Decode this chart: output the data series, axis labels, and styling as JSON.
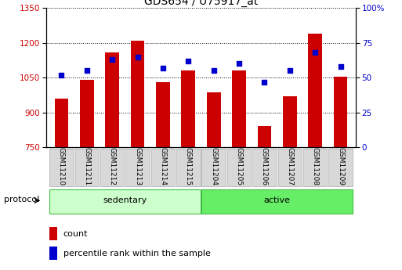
{
  "title": "GDS654 / U75917_at",
  "categories": [
    "GSM11210",
    "GSM11211",
    "GSM11212",
    "GSM11213",
    "GSM11214",
    "GSM11215",
    "GSM11204",
    "GSM11205",
    "GSM11206",
    "GSM11207",
    "GSM11208",
    "GSM11209"
  ],
  "count_values": [
    960,
    1040,
    1160,
    1210,
    1030,
    1080,
    985,
    1080,
    840,
    970,
    1240,
    1055
  ],
  "percentile_values": [
    52,
    55,
    63,
    65,
    57,
    62,
    55,
    60,
    47,
    55,
    68,
    58
  ],
  "bar_bottom": 750,
  "ylim_left": [
    750,
    1350
  ],
  "ylim_right": [
    0,
    100
  ],
  "yticks_left": [
    750,
    900,
    1050,
    1200,
    1350
  ],
  "yticks_right": [
    0,
    25,
    50,
    75,
    100
  ],
  "bar_color": "#cc0000",
  "dot_color": "#0000cc",
  "protocol_groups": [
    {
      "label": "sedentary",
      "indices": [
        0,
        1,
        2,
        3,
        4,
        5
      ],
      "color": "#ccffcc"
    },
    {
      "label": "active",
      "indices": [
        6,
        7,
        8,
        9,
        10,
        11
      ],
      "color": "#66ee66"
    }
  ],
  "protocol_label": "protocol",
  "legend_count": "count",
  "legend_percentile": "percentile rank within the sample",
  "title_fontsize": 10,
  "tick_fontsize": 7.5,
  "label_fontsize": 8,
  "bar_width": 0.55
}
